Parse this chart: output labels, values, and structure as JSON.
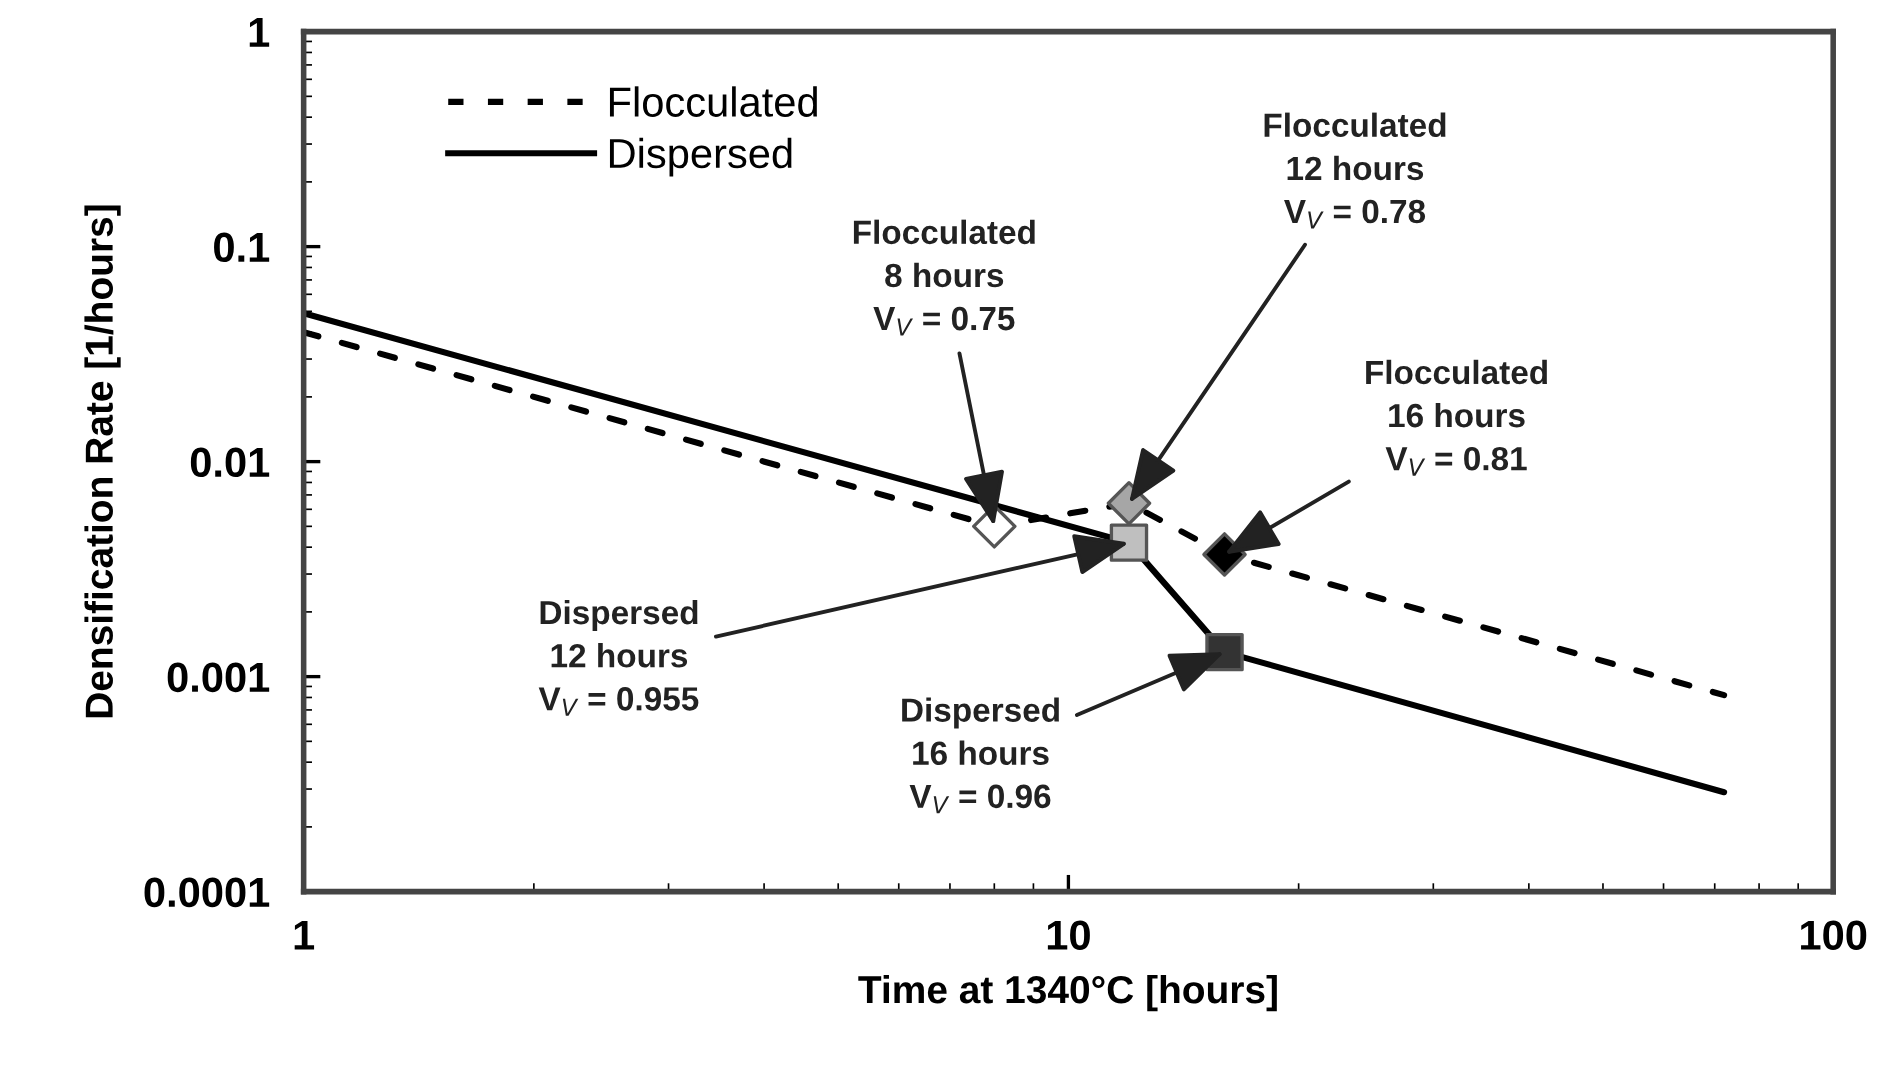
{
  "chart_data": {
    "type": "line",
    "xlabel": "Time at 1340°C [hours]",
    "ylabel": "Densification Rate [1/hours]",
    "log": "xy",
    "xlim": [
      1,
      100
    ],
    "xticks": [
      1,
      10,
      100
    ],
    "ylim": [
      0.0001,
      1
    ],
    "yticks": [
      0.0001,
      0.001,
      0.01,
      0.1,
      1
    ],
    "grid": false,
    "legend": "top left",
    "marker": "none",
    "series": [
      {
        "name": "Flocculated",
        "line_style": "dashed",
        "color": "#000000",
        "x": [
          1,
          8,
          12,
          16,
          72
        ],
        "values": [
          0.04,
          0.005,
          0.0064,
          0.0037,
          0.00082
        ]
      },
      {
        "name": "Dispersed",
        "line_style": "solid",
        "color": "#000000",
        "x": [
          1,
          12,
          16,
          72
        ],
        "values": [
          0.049,
          0.0042,
          0.0013,
          0.00029
        ]
      },
      {
        "type": "scatter",
        "marker": "diamond",
        "x": [
          8,
          12,
          16
        ],
        "values": [
          0.005,
          0.0064,
          0.0037
        ],
        "colors": [
          "#ffffff",
          "#a6a6a6",
          "#000000"
        ]
      },
      {
        "type": "scatter",
        "marker": "square",
        "x": [
          12,
          16
        ],
        "values": [
          0.0042,
          0.0013
        ],
        "colors": [
          "#bfbfbf",
          "#333333"
        ]
      }
    ],
    "annotations": [
      {
        "text": "Flocculated\n8 hours\nV$_{V}$ = 0.75",
        "x": 8,
        "y": 0.005
      },
      {
        "text": "Flocculated\n12 hours\nV$_{V}$ = 0.78",
        "x": 12,
        "y": 0.0064
      },
      {
        "text": "Flocculated\n16 hours\nV$_{V}$ = 0.81",
        "x": 16,
        "y": 0.0037
      },
      {
        "text": "Dispersed\n12 hours\nV$_{V}$ = 0.955",
        "x": 12,
        "y": 0.0042
      },
      {
        "text": "Dispersed\n16 hours\nV$_{V}$ = 0.96",
        "x": 16,
        "y": 0.0013
      }
    ]
  }
}
